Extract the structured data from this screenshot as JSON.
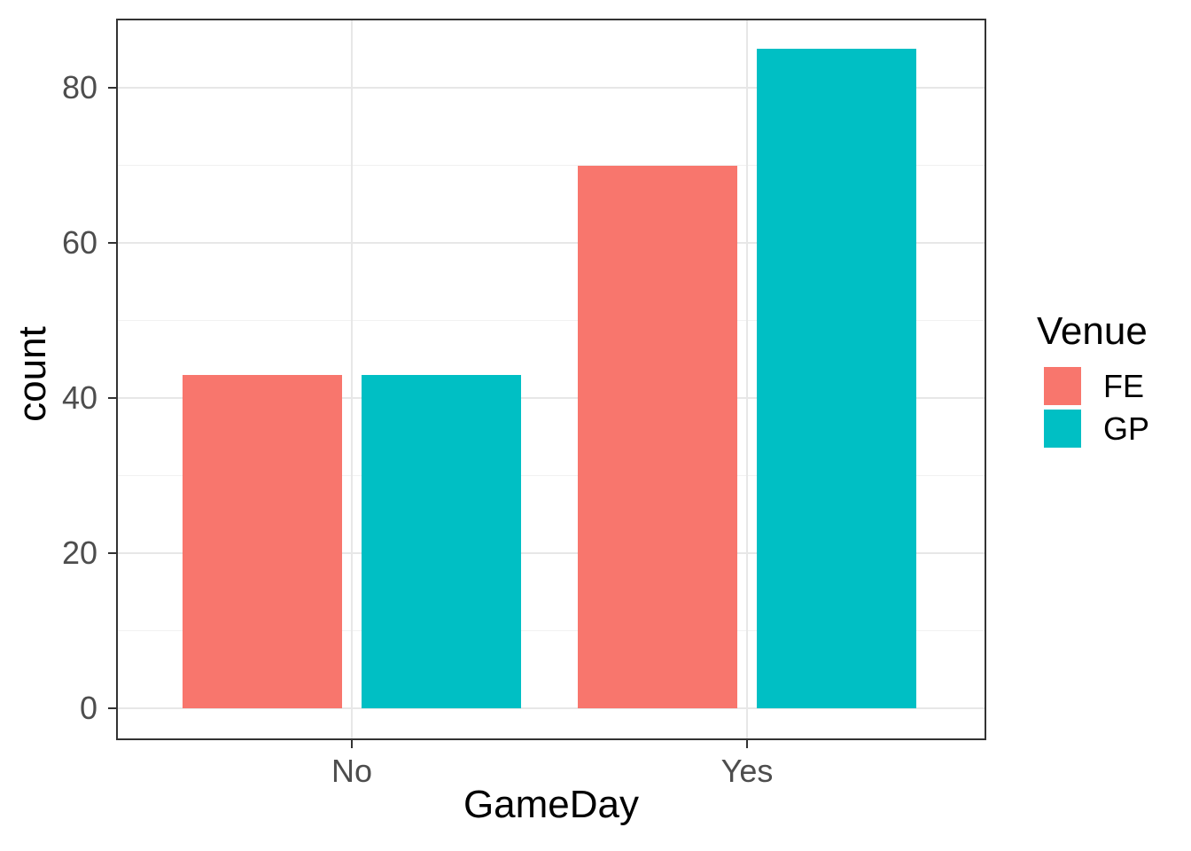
{
  "chart_data": {
    "type": "bar",
    "subtype": "dodged",
    "categories": [
      "No",
      "Yes"
    ],
    "series": [
      {
        "name": "FE",
        "color": "#F8766D",
        "values": [
          43,
          70
        ]
      },
      {
        "name": "GP",
        "color": "#00BFC4",
        "values": [
          43,
          85
        ]
      }
    ],
    "xlabel": "GameDay",
    "ylabel": "count",
    "legend_title": "Venue",
    "legend_position": "right",
    "y_major_ticks": [
      0,
      20,
      40,
      60,
      80
    ],
    "y_minor_ticks": [
      10,
      30,
      50,
      70
    ],
    "ylim": [
      -4.25,
      89.25
    ],
    "grid": true
  },
  "colors": {
    "fe": "#F8766D",
    "gp": "#00BFC4",
    "panel_border": "#333333",
    "axis_text": "#4D4D4D",
    "grid_major": "#E7E7E7",
    "grid_minor": "#F1F1F1",
    "background": "#FFFFFF"
  }
}
